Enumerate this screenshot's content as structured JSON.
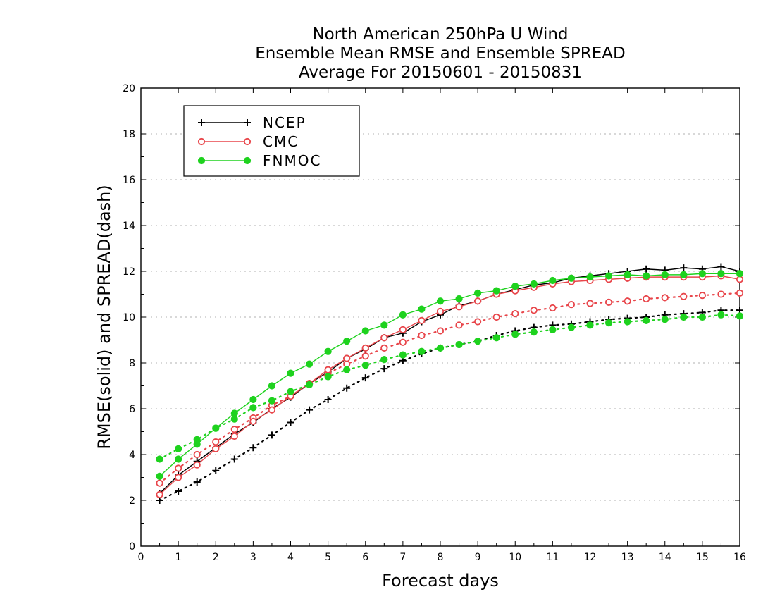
{
  "title": {
    "line1": "North American 250hPa U Wind",
    "line2": "Ensemble Mean RMSE and Ensemble SPREAD",
    "line3": "Average For 20150601 - 20150831"
  },
  "chart_data": {
    "type": "line",
    "title": "North American 250hPa U Wind / Ensemble Mean RMSE and Ensemble SPREAD / Average For 20150601 - 20150831",
    "xlabel": "Forecast days",
    "ylabel": "RMSE(solid) and SPREAD(dash)",
    "xlim": [
      0,
      16
    ],
    "ylim": [
      0,
      20
    ],
    "xticks": [
      0,
      1,
      2,
      3,
      4,
      5,
      6,
      7,
      8,
      9,
      10,
      11,
      12,
      13,
      14,
      15,
      16
    ],
    "yticks": [
      0,
      2,
      4,
      6,
      8,
      10,
      12,
      14,
      16,
      18,
      20
    ],
    "grid": "horizontal dotted",
    "legend_position": "top-left",
    "x": [
      0.5,
      1,
      1.5,
      2,
      2.5,
      3,
      3.5,
      4,
      4.5,
      5,
      5.5,
      6,
      6.5,
      7,
      7.5,
      8,
      8.5,
      9,
      9.5,
      10,
      10.5,
      11,
      11.5,
      12,
      12.5,
      13,
      13.5,
      14,
      14.5,
      15,
      15.5,
      16
    ],
    "series": [
      {
        "name": "NCEP",
        "color": "#000000",
        "marker": "plus",
        "rmse": [
          2.3,
          3.1,
          3.7,
          4.3,
          4.9,
          5.4,
          6.0,
          6.5,
          7.1,
          7.6,
          8.2,
          8.6,
          9.1,
          9.3,
          9.8,
          10.1,
          10.5,
          10.7,
          11.0,
          11.2,
          11.4,
          11.5,
          11.7,
          11.8,
          11.9,
          12.0,
          12.1,
          12.05,
          12.15,
          12.1,
          12.2,
          12.0
        ],
        "spread": [
          2.0,
          2.4,
          2.8,
          3.3,
          3.8,
          4.3,
          4.85,
          5.4,
          5.95,
          6.4,
          6.9,
          7.35,
          7.75,
          8.1,
          8.4,
          8.65,
          8.8,
          8.95,
          9.2,
          9.4,
          9.55,
          9.65,
          9.7,
          9.8,
          9.9,
          9.95,
          10.0,
          10.1,
          10.15,
          10.2,
          10.3,
          10.3
        ]
      },
      {
        "name": "CMC",
        "color": "#e8454a",
        "marker": "open-circle",
        "rmse": [
          2.25,
          3.0,
          3.55,
          4.25,
          4.8,
          5.45,
          5.95,
          6.55,
          7.1,
          7.7,
          8.2,
          8.65,
          9.1,
          9.45,
          9.85,
          10.25,
          10.45,
          10.7,
          11.0,
          11.15,
          11.3,
          11.45,
          11.55,
          11.6,
          11.65,
          11.7,
          11.75,
          11.75,
          11.75,
          11.75,
          11.8,
          11.65
        ],
        "spread": [
          2.75,
          3.4,
          4.0,
          4.55,
          5.1,
          5.6,
          6.15,
          6.55,
          7.1,
          7.55,
          7.95,
          8.3,
          8.65,
          8.9,
          9.2,
          9.4,
          9.65,
          9.8,
          10.0,
          10.15,
          10.3,
          10.4,
          10.55,
          10.6,
          10.65,
          10.7,
          10.8,
          10.85,
          10.9,
          10.95,
          11.0,
          11.05
        ]
      },
      {
        "name": "FNMOC",
        "color": "#1ed21e",
        "marker": "filled-circle",
        "rmse": [
          3.05,
          3.8,
          4.45,
          5.15,
          5.8,
          6.4,
          7.0,
          7.55,
          7.95,
          8.5,
          8.95,
          9.4,
          9.65,
          10.1,
          10.35,
          10.7,
          10.8,
          11.05,
          11.15,
          11.35,
          11.45,
          11.6,
          11.7,
          11.75,
          11.8,
          11.85,
          11.8,
          11.85,
          11.85,
          11.9,
          11.9,
          11.9
        ],
        "spread": [
          3.8,
          4.25,
          4.65,
          5.15,
          5.55,
          6.05,
          6.35,
          6.75,
          7.05,
          7.4,
          7.7,
          7.9,
          8.15,
          8.35,
          8.5,
          8.65,
          8.8,
          8.95,
          9.1,
          9.25,
          9.35,
          9.45,
          9.55,
          9.65,
          9.75,
          9.8,
          9.85,
          9.9,
          10.0,
          10.0,
          10.1,
          10.05
        ]
      }
    ]
  }
}
